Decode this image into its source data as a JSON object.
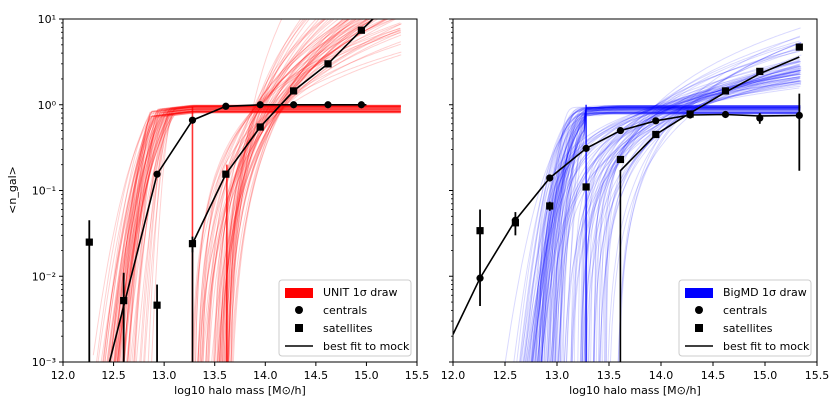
{
  "chart_data": [
    {
      "type": "line",
      "panel": "left",
      "xlabel": "log10 halo mass [M⊙/h]",
      "ylabel": "<n_gal>",
      "xlim": [
        12.0,
        15.5
      ],
      "ylim": [
        0.001,
        10
      ],
      "yscale": "log",
      "xticks": [
        "12.0",
        "12.5",
        "13.0",
        "13.5",
        "14.0",
        "14.5",
        "15.0",
        "15.5"
      ],
      "yticks": [
        "10⁻³",
        "10⁻²",
        "10⁻¹",
        "10⁰",
        "10¹"
      ],
      "draw_color": "#ff0000",
      "centrals": {
        "name": "centrals",
        "x": [
          12.93,
          13.28,
          13.61,
          13.95,
          14.28,
          14.62,
          14.95
        ],
        "y": [
          0.155,
          0.66,
          0.96,
          1.0,
          1.0,
          1.0,
          1.0
        ]
      },
      "satellites": {
        "name": "satellites",
        "x": [
          12.26,
          12.6,
          12.93,
          13.28,
          13.61,
          13.95,
          14.28,
          14.62,
          14.95
        ],
        "y": [
          0.025,
          0.0052,
          0.0046,
          0.024,
          0.155,
          0.55,
          1.45,
          3.0,
          7.4
        ]
      },
      "best_fit_centrals": {
        "x": [
          12.46,
          12.6,
          12.93,
          13.28,
          13.61,
          13.95,
          14.28,
          14.62,
          14.95,
          15.0
        ],
        "y": [
          0.001,
          0.0045,
          0.155,
          0.66,
          0.96,
          1.0,
          1.0,
          1.0,
          1.0,
          1.0
        ]
      },
      "best_fit_satellites": {
        "x": [
          13.28,
          13.28,
          13.61,
          13.95,
          14.28,
          14.62,
          14.95,
          15.1
        ],
        "y": [
          0.001,
          0.024,
          0.155,
          0.55,
          1.45,
          3.0,
          7.4,
          11
        ]
      },
      "legend": [
        "UNIT 1σ draw",
        "centrals",
        "satellites",
        "best fit to mock"
      ],
      "legend_position": "lower-right"
    },
    {
      "type": "line",
      "panel": "right",
      "xlabel": "log10 halo mass [M⊙/h]",
      "xlim": [
        12.0,
        15.5
      ],
      "ylim": [
        0.001,
        10
      ],
      "yscale": "log",
      "xticks": [
        "12.0",
        "12.5",
        "13.0",
        "13.5",
        "14.0",
        "14.5",
        "15.0",
        "15.5"
      ],
      "draw_color": "#0000ff",
      "centrals": {
        "name": "centrals",
        "x": [
          12.26,
          12.6,
          12.93,
          13.28,
          13.61,
          13.95,
          14.28,
          14.62,
          14.95,
          15.33
        ],
        "y": [
          0.0095,
          0.045,
          0.14,
          0.31,
          0.5,
          0.65,
          0.76,
          0.77,
          0.7,
          0.75
        ]
      },
      "satellites": {
        "name": "satellites",
        "x": [
          12.26,
          12.6,
          12.93,
          13.28,
          13.61,
          13.95,
          14.28,
          14.62,
          14.95,
          15.33
        ],
        "y": [
          0.034,
          0.042,
          0.066,
          0.11,
          0.23,
          0.45,
          0.78,
          1.45,
          2.45,
          4.7
        ]
      },
      "best_fit_centrals": {
        "x": [
          12.0,
          12.26,
          12.6,
          12.93,
          13.28,
          13.61,
          13.95,
          14.28,
          14.62,
          14.95,
          15.33
        ],
        "y": [
          0.0021,
          0.0095,
          0.045,
          0.14,
          0.31,
          0.5,
          0.65,
          0.76,
          0.77,
          0.74,
          0.75
        ]
      },
      "best_fit_satellites": {
        "x": [
          13.61,
          13.61,
          13.95,
          14.28,
          14.62,
          14.95,
          15.33
        ],
        "y": [
          0.001,
          0.17,
          0.45,
          0.8,
          1.4,
          2.3,
          3.6
        ]
      },
      "legend": [
        "BigMD 1σ draw",
        "centrals",
        "satellites",
        "best fit to mock"
      ],
      "legend_position": "lower-right"
    }
  ]
}
